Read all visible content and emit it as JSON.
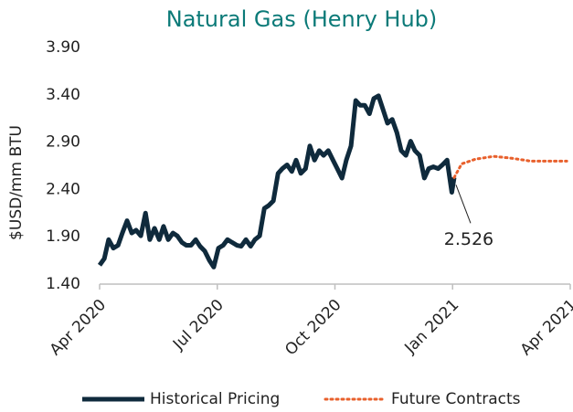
{
  "chart_data": {
    "type": "line",
    "title": "Natural Gas (Henry Hub)",
    "y_label": "$USD/mm BTU",
    "xlim": [
      0,
      12
    ],
    "xticks": [
      {
        "value": 0,
        "label": "Apr 2020"
      },
      {
        "value": 3,
        "label": "Jul 2020"
      },
      {
        "value": 6,
        "label": "Oct 2020"
      },
      {
        "value": 9,
        "label": "Jan 2021"
      },
      {
        "value": 12,
        "label": "Apr 2021"
      }
    ],
    "ylim": [
      1.4,
      3.9
    ],
    "yticks": [
      {
        "value": 1.4,
        "label": "1.40"
      },
      {
        "value": 1.9,
        "label": "1.90"
      },
      {
        "value": 2.4,
        "label": "2.40"
      },
      {
        "value": 2.9,
        "label": "2.90"
      },
      {
        "value": 3.4,
        "label": "3.40"
      },
      {
        "value": 3.9,
        "label": "3.90"
      }
    ],
    "grid": false,
    "legend": "bottom",
    "series": [
      {
        "name": "Historical Pricing",
        "color": "#0f2a3c",
        "style": "solid",
        "x": [
          0,
          0.12,
          0.23,
          0.35,
          0.47,
          0.58,
          0.7,
          0.82,
          0.93,
          1.05,
          1.17,
          1.28,
          1.4,
          1.52,
          1.63,
          1.75,
          1.87,
          1.98,
          2.1,
          2.21,
          2.33,
          2.45,
          2.56,
          2.68,
          2.8,
          2.91,
          3.03,
          3.15,
          3.26,
          3.38,
          3.5,
          3.61,
          3.73,
          3.85,
          3.96,
          4.08,
          4.2,
          4.31,
          4.43,
          4.55,
          4.66,
          4.78,
          4.9,
          5.01,
          5.13,
          5.25,
          5.36,
          5.48,
          5.6,
          5.71,
          5.83,
          5.95,
          6.06,
          6.18,
          6.29,
          6.41,
          6.53,
          6.64,
          6.76,
          6.88,
          6.99,
          7.11,
          7.23,
          7.34,
          7.46,
          7.58,
          7.69,
          7.81,
          7.93,
          8.04,
          8.16,
          8.28,
          8.39,
          8.51,
          8.63,
          8.74,
          8.86,
          8.98,
          9.04
        ],
        "values": [
          1.6,
          1.67,
          1.87,
          1.78,
          1.81,
          1.94,
          2.07,
          1.94,
          1.97,
          1.91,
          2.15,
          1.87,
          1.99,
          1.87,
          2.01,
          1.87,
          1.94,
          1.91,
          1.84,
          1.81,
          1.81,
          1.87,
          1.8,
          1.75,
          1.65,
          1.58,
          1.78,
          1.81,
          1.87,
          1.84,
          1.81,
          1.8,
          1.87,
          1.8,
          1.87,
          1.91,
          2.2,
          2.23,
          2.28,
          2.57,
          2.62,
          2.66,
          2.59,
          2.71,
          2.57,
          2.62,
          2.86,
          2.71,
          2.81,
          2.76,
          2.81,
          2.71,
          2.62,
          2.52,
          2.71,
          2.86,
          3.34,
          3.29,
          3.29,
          3.2,
          3.36,
          3.39,
          3.24,
          3.1,
          3.14,
          3.0,
          2.81,
          2.76,
          2.91,
          2.81,
          2.76,
          2.52,
          2.62,
          2.64,
          2.62,
          2.66,
          2.71,
          2.37,
          2.526
        ]
      },
      {
        "name": "Future Contracts",
        "color": "#e8602c",
        "style": "dotted",
        "x": [
          9.04,
          9.23,
          9.58,
          10.05,
          10.51,
          10.98,
          11.45,
          11.91
        ],
        "values": [
          2.526,
          2.67,
          2.72,
          2.75,
          2.73,
          2.7,
          2.7,
          2.7
        ]
      }
    ],
    "annotations": [
      {
        "text": "2.526",
        "x": 9.04,
        "y": 2.526
      }
    ]
  }
}
